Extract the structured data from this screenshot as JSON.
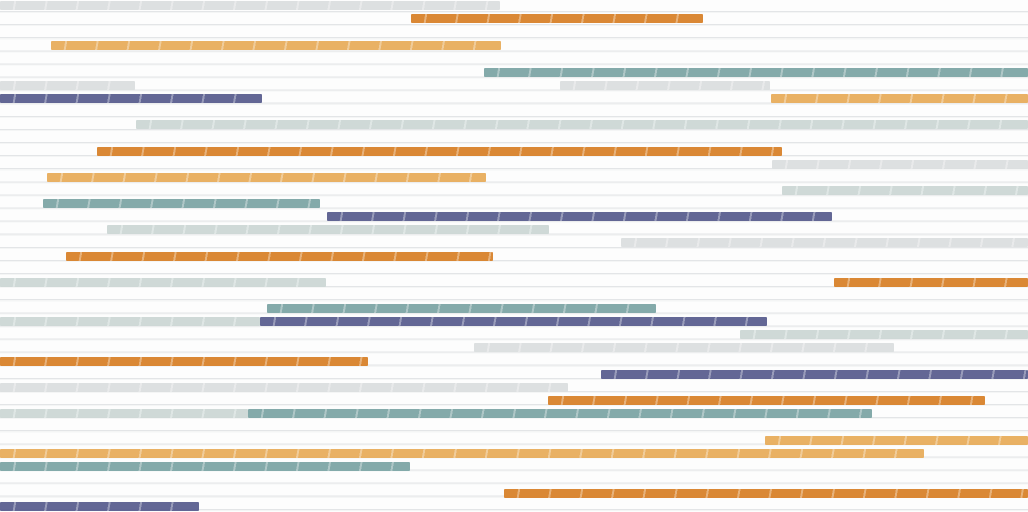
{
  "palette": {
    "orange": "#d9822b",
    "yellow": "#e8ad5c",
    "teal": "#7ea6a6",
    "navy": "#5b5f90",
    "gray": "#dcdfe0",
    "pale": "#cdd8d6",
    "background": "#fbfbfb",
    "groove": "#e3e5e7"
  }
}
